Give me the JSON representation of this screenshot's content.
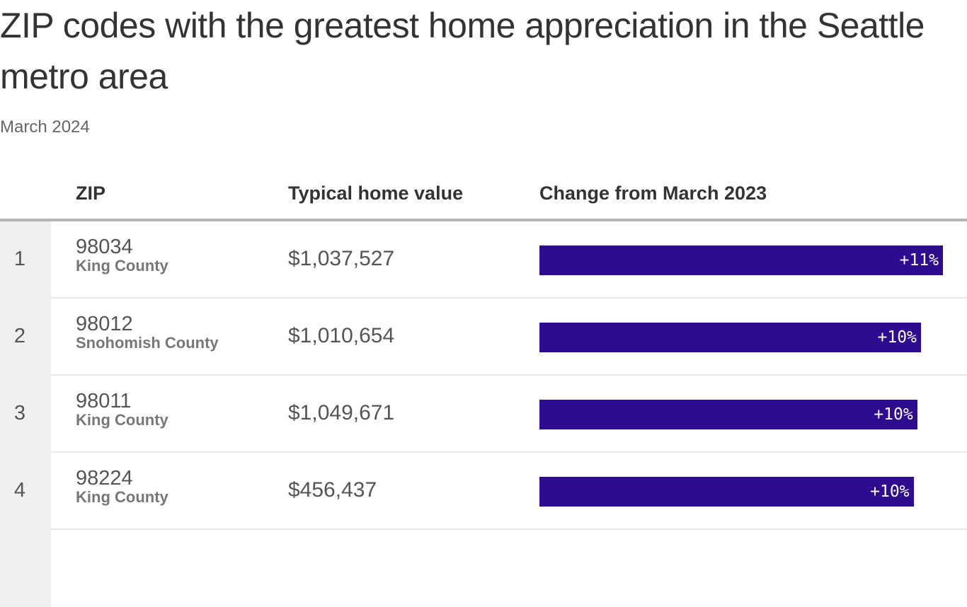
{
  "header": {
    "title": "ZIP codes with the greatest home appreciation in the Seattle metro area",
    "subtitle": "March 2024"
  },
  "table": {
    "columns": [
      "ZIP",
      "Typical home value",
      "Change from March 2023"
    ],
    "rows": [
      {
        "rank": "1",
        "zip": "98034",
        "county": "King County",
        "value": "$1,037,527",
        "change": 11.0,
        "change_label": "+11%"
      },
      {
        "rank": "2",
        "zip": "98012",
        "county": "Snohomish County",
        "value": "$1,010,654",
        "change": 10.4,
        "change_label": "+10%"
      },
      {
        "rank": "3",
        "zip": "98011",
        "county": "King County",
        "value": "$1,049,671",
        "change": 10.3,
        "change_label": "+10%"
      },
      {
        "rank": "4",
        "zip": "98224",
        "county": "King County",
        "value": "$456,437",
        "change": 10.2,
        "change_label": "+10%"
      }
    ]
  }
}
